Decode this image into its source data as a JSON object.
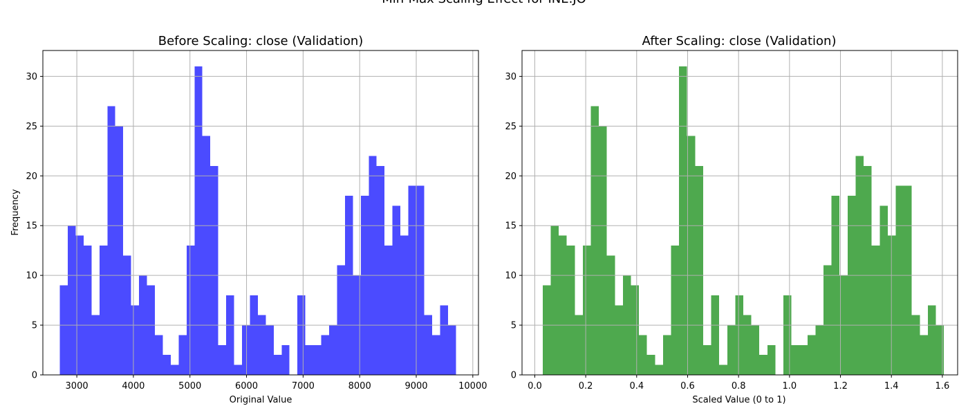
{
  "figure": {
    "suptitle": "Min-Max Scaling Effect for INE.JO"
  },
  "colors": {
    "before_bars": "#4b4bff",
    "after_bars": "#4ea94e",
    "grid": "#b0b0b0",
    "axis": "#000000"
  },
  "chart_data": [
    {
      "type": "bar",
      "title": "Before Scaling: close (Validation)",
      "xlabel": "Original Value",
      "ylabel": "Frequency",
      "xlim": [
        2400,
        10100
      ],
      "ylim": [
        0,
        32.6
      ],
      "xticks": [
        3000,
        4000,
        5000,
        6000,
        7000,
        8000,
        9000,
        10000
      ],
      "yticks": [
        0,
        5,
        10,
        15,
        20,
        25,
        30
      ],
      "grid": true,
      "bin_start": 2700,
      "bin_width": 140,
      "values": [
        9,
        15,
        14,
        13,
        6,
        13,
        27,
        25,
        12,
        7,
        10,
        9,
        4,
        2,
        1,
        4,
        13,
        31,
        24,
        21,
        3,
        8,
        1,
        5,
        8,
        6,
        5,
        2,
        3,
        0,
        8,
        3,
        3,
        4,
        5,
        11,
        18,
        10,
        18,
        22,
        21,
        13,
        17,
        14,
        19,
        19,
        6,
        4,
        7,
        5
      ]
    },
    {
      "type": "bar",
      "title": "After Scaling: close (Validation)",
      "xlabel": "Scaled Value (0 to 1)",
      "ylabel": "",
      "xlim": [
        -0.05,
        1.66
      ],
      "ylim": [
        0,
        32.6
      ],
      "xticks": [
        0.0,
        0.2,
        0.4,
        0.6,
        0.8,
        1.0,
        1.2,
        1.4,
        1.6
      ],
      "yticks": [
        0,
        5,
        10,
        15,
        20,
        25,
        30
      ],
      "grid": true,
      "bin_start": 0.031,
      "bin_width": 0.0315,
      "values": [
        9,
        15,
        14,
        13,
        6,
        13,
        27,
        25,
        12,
        7,
        10,
        9,
        4,
        2,
        1,
        4,
        13,
        31,
        24,
        21,
        3,
        8,
        1,
        5,
        8,
        6,
        5,
        2,
        3,
        0,
        8,
        3,
        3,
        4,
        5,
        11,
        18,
        10,
        18,
        22,
        21,
        13,
        17,
        14,
        19,
        19,
        6,
        4,
        7,
        5
      ]
    }
  ]
}
